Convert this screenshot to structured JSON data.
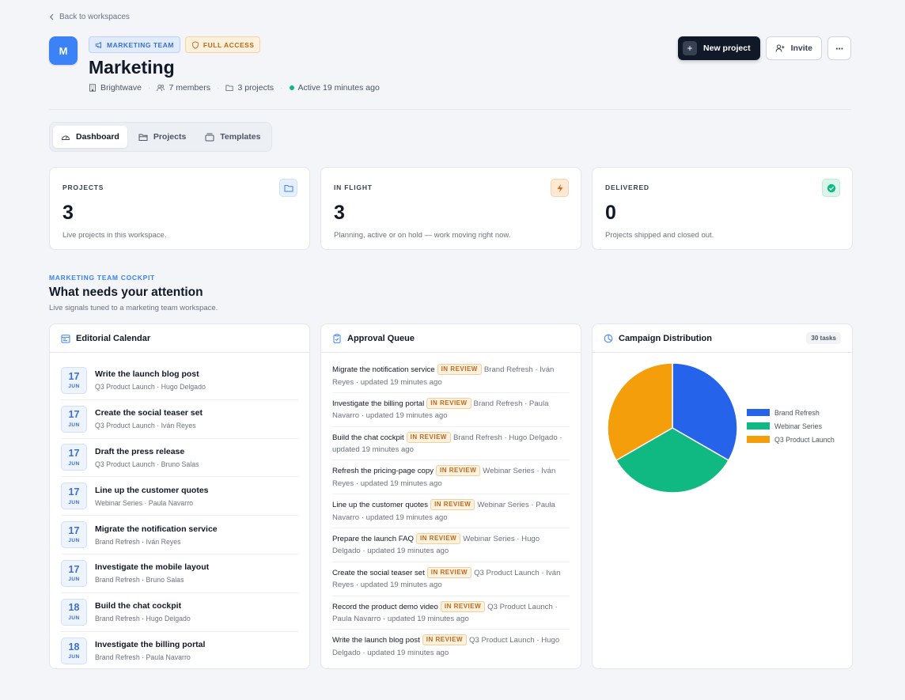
{
  "header": {
    "back_label": "Back to workspaces",
    "avatar_letter": "M",
    "team_badge": "MARKETING TEAM",
    "access_badge": "FULL ACCESS",
    "title": "Marketing",
    "meta": {
      "org": "Brightwave",
      "members": "7 members",
      "projects": "3 projects",
      "activity": "Active 19 minutes ago"
    },
    "actions": {
      "new_project": "New project",
      "invite": "Invite",
      "more": "···"
    }
  },
  "tabs": [
    {
      "label": "Dashboard",
      "active": true
    },
    {
      "label": "Projects",
      "active": false
    },
    {
      "label": "Templates",
      "active": false
    }
  ],
  "stats": [
    {
      "label": "PROJECTS",
      "value": "3",
      "desc": "Live projects in this workspace.",
      "icon": "folder-icon",
      "color": "#3b82f6",
      "bg": "#e6effc"
    },
    {
      "label": "IN FLIGHT",
      "value": "3",
      "desc": "Planning, active or on hold — work moving right now.",
      "icon": "lightning-icon",
      "color": "#d9691a",
      "bg": "#fde9d4"
    },
    {
      "label": "DELIVERED",
      "value": "0",
      "desc": "Projects shipped and closed out.",
      "icon": "check-circle-icon",
      "color": "#10b981",
      "bg": "#dcf5ea"
    }
  ],
  "section": {
    "eyebrow": "MARKETING TEAM COCKPIT",
    "title": "What needs your attention",
    "subtitle": "Live signals tuned to a marketing team workspace."
  },
  "calendar": {
    "title": "Editorial Calendar",
    "items": [
      {
        "day": "17",
        "month": "JUN",
        "title": "Write the launch blog post",
        "sub": "Q3 Product Launch · Hugo Delgado"
      },
      {
        "day": "17",
        "month": "JUN",
        "title": "Create the social teaser set",
        "sub": "Q3 Product Launch · Iván Reyes"
      },
      {
        "day": "17",
        "month": "JUN",
        "title": "Draft the press release",
        "sub": "Q3 Product Launch · Bruno Salas"
      },
      {
        "day": "17",
        "month": "JUN",
        "title": "Line up the customer quotes",
        "sub": "Webinar Series · Paula Navarro"
      },
      {
        "day": "17",
        "month": "JUN",
        "title": "Migrate the notification service",
        "sub": "Brand Refresh · Iván Reyes"
      },
      {
        "day": "17",
        "month": "JUN",
        "title": "Investigate the mobile layout",
        "sub": "Brand Refresh · Bruno Salas"
      },
      {
        "day": "18",
        "month": "JUN",
        "title": "Build the chat cockpit",
        "sub": "Brand Refresh · Hugo Delgado"
      },
      {
        "day": "18",
        "month": "JUN",
        "title": "Investigate the billing portal",
        "sub": "Brand Refresh · Paula Navarro"
      }
    ]
  },
  "approvals": {
    "title": "Approval Queue",
    "status": "IN REVIEW",
    "items": [
      {
        "name": "Migrate the notification service",
        "detail": "Brand Refresh · Iván Reyes · updated 19 minutes ago"
      },
      {
        "name": "Investigate the billing portal",
        "detail": "Brand Refresh · Paula Navarro · updated 19 minutes ago"
      },
      {
        "name": "Build the chat cockpit",
        "detail": "Brand Refresh · Hugo Delgado · updated 19 minutes ago"
      },
      {
        "name": "Refresh the pricing-page copy",
        "detail": "Webinar Series · Iván Reyes · updated 19 minutes ago"
      },
      {
        "name": "Line up the customer quotes",
        "detail": "Webinar Series · Paula Navarro · updated 19 minutes ago"
      },
      {
        "name": "Prepare the launch FAQ",
        "detail": "Webinar Series · Hugo Delgado · updated 19 minutes ago"
      },
      {
        "name": "Create the social teaser set",
        "detail": "Q3 Product Launch · Iván Reyes · updated 19 minutes ago"
      },
      {
        "name": "Record the product demo video",
        "detail": "Q3 Product Launch · Paula Navarro · updated 19 minutes ago"
      },
      {
        "name": "Write the launch blog post",
        "detail": "Q3 Product Launch · Hugo Delgado · updated 19 minutes ago"
      }
    ]
  },
  "distribution": {
    "title": "Campaign Distribution",
    "count": "30 tasks"
  },
  "chart_data": {
    "type": "pie",
    "categories": [
      "Brand Refresh",
      "Webinar Series",
      "Q3 Product Launch"
    ],
    "values": [
      10,
      10,
      10
    ],
    "colors": [
      "#2563eb",
      "#10b981",
      "#f59e0b"
    ],
    "legend": "right"
  }
}
